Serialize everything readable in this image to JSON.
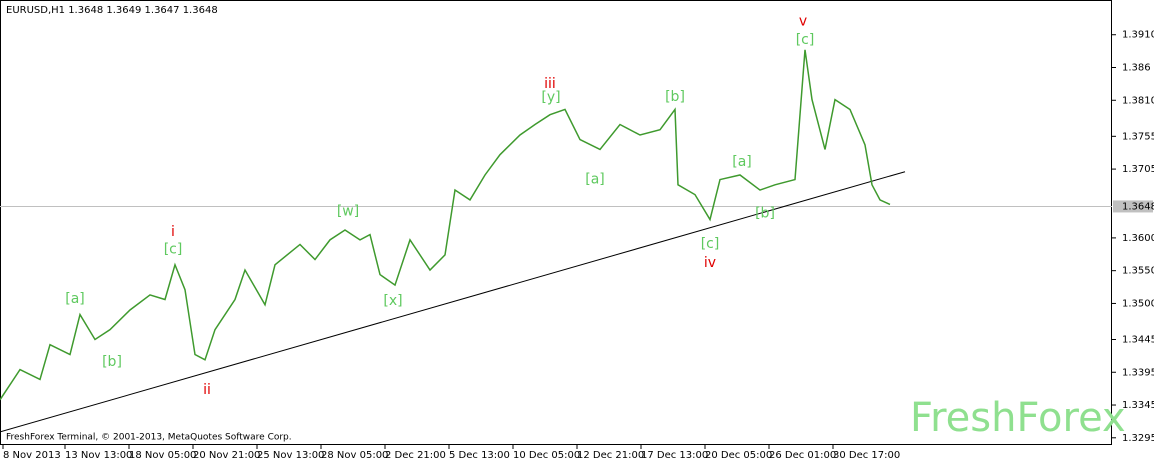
{
  "chart_data": {
    "type": "line",
    "title": "EURUSD,H1  1.3648 1.3649 1.3647 1.3648",
    "footer": "FreshForex Terminal, © 2001-2013, MetaQuotes Software Corp.",
    "watermark": "FreshForex",
    "xlim": [
      0,
      1112
    ],
    "ylim": [
      1.3284,
      1.3963
    ],
    "xticks": [
      {
        "value": 3,
        "label": "8 Nov 2013"
      },
      {
        "value": 65,
        "label": "13 Nov 13:00"
      },
      {
        "value": 129,
        "label": "18 Nov 05:00"
      },
      {
        "value": 193,
        "label": "20 Nov 21:00"
      },
      {
        "value": 257,
        "label": "25 Nov 13:00"
      },
      {
        "value": 321,
        "label": "28 Nov 05:00"
      },
      {
        "value": 385,
        "label": "2 Dec 21:00"
      },
      {
        "value": 449,
        "label": "5 Dec 13:00"
      },
      {
        "value": 513,
        "label": "10 Dec 05:00"
      },
      {
        "value": 577,
        "label": "12 Dec 21:00"
      },
      {
        "value": 641,
        "label": "17 Dec 13:00"
      },
      {
        "value": 705,
        "label": "20 Dec 05:00"
      },
      {
        "value": 769,
        "label": "26 Dec 01:00"
      },
      {
        "value": 833,
        "label": "30 Dec 17:00"
      }
    ],
    "yticks": [
      {
        "value": 1.391,
        "label": "1.3910"
      },
      1.386,
      {
        "value": 1.381,
        "label": "1.3810"
      },
      1.3755,
      1.3705,
      {
        "value": 1.36,
        "label": "1.3600"
      },
      {
        "value": 1.355,
        "label": "1.3550"
      },
      {
        "value": 1.35,
        "label": "1.3500"
      },
      1.3445,
      1.3395,
      1.3345,
      1.3295
    ],
    "current_price": {
      "value": 1.3648,
      "label": "1.3648"
    },
    "series": [
      {
        "color": "#3f9a2e",
        "x": [
          0,
          20,
          40,
          50,
          70,
          80,
          95,
          110,
          130,
          150,
          165,
          175,
          185,
          195,
          205,
          215,
          235,
          245,
          265,
          275,
          300,
          315,
          330,
          345,
          360,
          370,
          380,
          395,
          410,
          430,
          445,
          455,
          470,
          485,
          500,
          520,
          535,
          550,
          565,
          580,
          600,
          620,
          640,
          660,
          675,
          678,
          695,
          710,
          720,
          740,
          760,
          775,
          795,
          805,
          812,
          825,
          835,
          850,
          865,
          872,
          880,
          890
        ],
        "values": [
          1.3353,
          1.3399,
          1.3384,
          1.3437,
          1.3422,
          1.3483,
          1.3445,
          1.346,
          1.349,
          1.3513,
          1.3506,
          1.3559,
          1.3521,
          1.3422,
          1.3414,
          1.346,
          1.3506,
          1.3551,
          1.3498,
          1.3559,
          1.359,
          1.3567,
          1.3597,
          1.3612,
          1.3597,
          1.3605,
          1.3544,
          1.3528,
          1.3597,
          1.3551,
          1.3574,
          1.3673,
          1.3658,
          1.3696,
          1.3727,
          1.3757,
          1.3773,
          1.3788,
          1.3796,
          1.375,
          1.3735,
          1.3773,
          1.3757,
          1.3765,
          1.3796,
          1.3681,
          1.3666,
          1.3628,
          1.3689,
          1.3696,
          1.3673,
          1.3681,
          1.3689,
          1.3887,
          1.3811,
          1.3735,
          1.3811,
          1.3796,
          1.3742,
          1.3681,
          1.3658,
          1.3651
        ]
      }
    ],
    "trendline": {
      "x": [
        0,
        905
      ],
      "values": [
        1.3304,
        1.3701
      ]
    },
    "annotations": [
      {
        "text": "v",
        "x": 803,
        "y": 1.393,
        "color": "#e00000"
      },
      {
        "text": "[c]",
        "x": 805,
        "y": 1.3902,
        "color": "#5fc95f"
      },
      {
        "text": "iii",
        "x": 550,
        "y": 1.3835,
        "color": "#e00000"
      },
      {
        "text": "[y]",
        "x": 551,
        "y": 1.3814,
        "color": "#5fc95f"
      },
      {
        "text": "[b]",
        "x": 675,
        "y": 1.3815,
        "color": "#5fc95f"
      },
      {
        "text": "[a]",
        "x": 742,
        "y": 1.3716,
        "color": "#5fc95f"
      },
      {
        "text": "[a]",
        "x": 595,
        "y": 1.3689,
        "color": "#5fc95f"
      },
      {
        "text": "[b]",
        "x": 765,
        "y": 1.3637,
        "color": "#5fc95f"
      },
      {
        "text": "[c]",
        "x": 710,
        "y": 1.3591,
        "color": "#5fc95f"
      },
      {
        "text": "iv",
        "x": 710,
        "y": 1.3562,
        "color": "#e00000"
      },
      {
        "text": "[w]",
        "x": 348,
        "y": 1.364,
        "color": "#5fc95f"
      },
      {
        "text": "[x]",
        "x": 393,
        "y": 1.3504,
        "color": "#5fc95f"
      },
      {
        "text": "i",
        "x": 173,
        "y": 1.3609,
        "color": "#e00000"
      },
      {
        "text": "[c]",
        "x": 173,
        "y": 1.3582,
        "color": "#5fc95f"
      },
      {
        "text": "[a]",
        "x": 75,
        "y": 1.3507,
        "color": "#5fc95f"
      },
      {
        "text": "[b]",
        "x": 112,
        "y": 1.3411,
        "color": "#5fc95f"
      },
      {
        "text": "ii",
        "x": 207,
        "y": 1.3368,
        "color": "#e00000"
      }
    ]
  }
}
